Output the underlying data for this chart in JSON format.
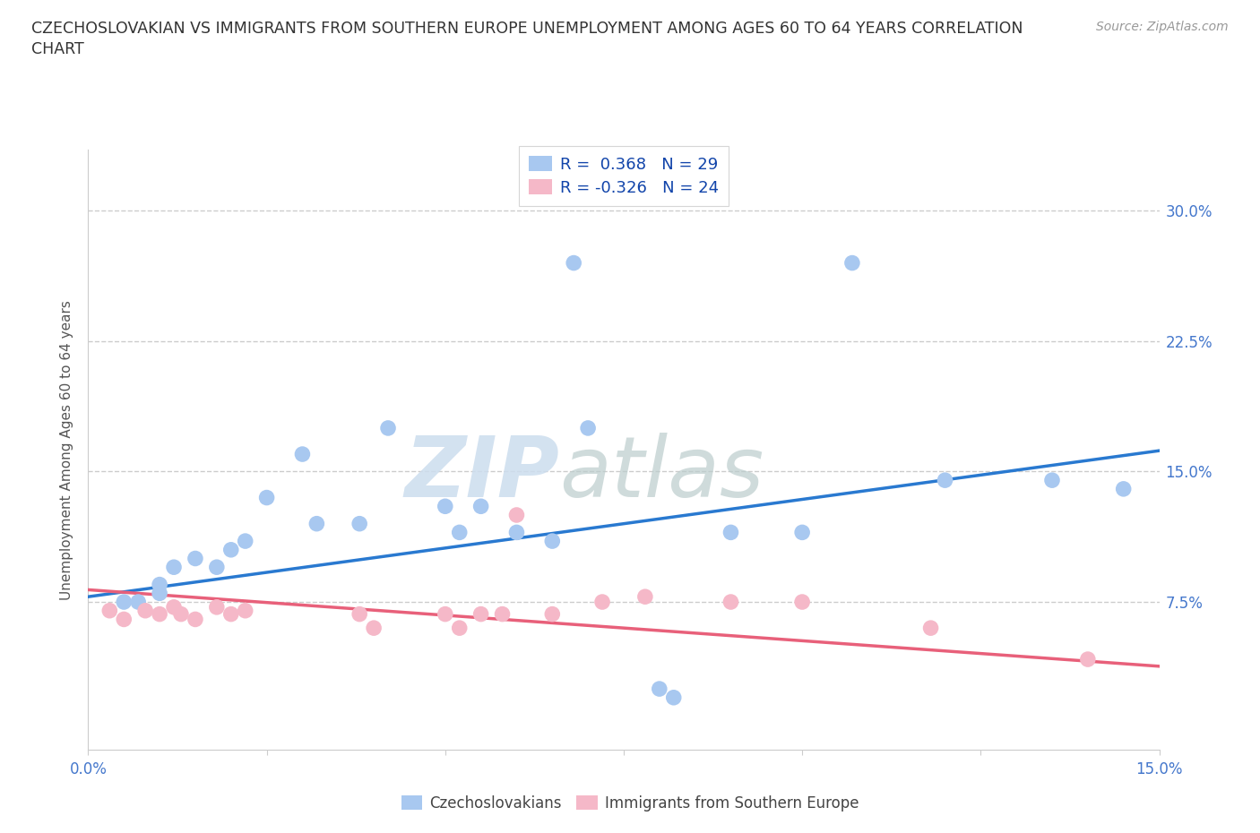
{
  "title_line1": "CZECHOSLOVAKIAN VS IMMIGRANTS FROM SOUTHERN EUROPE UNEMPLOYMENT AMONG AGES 60 TO 64 YEARS CORRELATION",
  "title_line2": "CHART",
  "source": "Source: ZipAtlas.com",
  "xlim": [
    0.0,
    0.15
  ],
  "ylim": [
    -0.01,
    0.335
  ],
  "blue_R": 0.368,
  "blue_N": 29,
  "pink_R": -0.326,
  "pink_N": 24,
  "blue_color": "#A8C8F0",
  "pink_color": "#F5B8C8",
  "blue_line_color": "#2979D0",
  "pink_line_color": "#E8607A",
  "blue_scatter": [
    [
      0.005,
      0.075
    ],
    [
      0.007,
      0.075
    ],
    [
      0.01,
      0.08
    ],
    [
      0.01,
      0.085
    ],
    [
      0.012,
      0.095
    ],
    [
      0.015,
      0.1
    ],
    [
      0.018,
      0.095
    ],
    [
      0.02,
      0.105
    ],
    [
      0.022,
      0.11
    ],
    [
      0.025,
      0.135
    ],
    [
      0.03,
      0.16
    ],
    [
      0.032,
      0.12
    ],
    [
      0.038,
      0.12
    ],
    [
      0.042,
      0.175
    ],
    [
      0.05,
      0.13
    ],
    [
      0.052,
      0.115
    ],
    [
      0.055,
      0.13
    ],
    [
      0.06,
      0.115
    ],
    [
      0.065,
      0.11
    ],
    [
      0.068,
      0.27
    ],
    [
      0.07,
      0.175
    ],
    [
      0.08,
      0.025
    ],
    [
      0.082,
      0.02
    ],
    [
      0.09,
      0.115
    ],
    [
      0.1,
      0.115
    ],
    [
      0.107,
      0.27
    ],
    [
      0.12,
      0.145
    ],
    [
      0.135,
      0.145
    ],
    [
      0.145,
      0.14
    ]
  ],
  "pink_scatter": [
    [
      0.003,
      0.07
    ],
    [
      0.005,
      0.065
    ],
    [
      0.008,
      0.07
    ],
    [
      0.01,
      0.068
    ],
    [
      0.012,
      0.072
    ],
    [
      0.013,
      0.068
    ],
    [
      0.015,
      0.065
    ],
    [
      0.018,
      0.072
    ],
    [
      0.02,
      0.068
    ],
    [
      0.022,
      0.07
    ],
    [
      0.038,
      0.068
    ],
    [
      0.04,
      0.06
    ],
    [
      0.05,
      0.068
    ],
    [
      0.052,
      0.06
    ],
    [
      0.055,
      0.068
    ],
    [
      0.058,
      0.068
    ],
    [
      0.06,
      0.125
    ],
    [
      0.065,
      0.068
    ],
    [
      0.072,
      0.075
    ],
    [
      0.078,
      0.078
    ],
    [
      0.09,
      0.075
    ],
    [
      0.1,
      0.075
    ],
    [
      0.118,
      0.06
    ],
    [
      0.14,
      0.042
    ]
  ],
  "gridline_color": "#CCCCCC",
  "gridline_style": "--",
  "ylabel": "Unemployment Among Ages 60 to 64 years",
  "tick_color": "#4477CC",
  "label_color": "#555555",
  "legend_label_color": "#1144AA",
  "watermark_zip_color": "#CCDDEE",
  "watermark_atlas_color": "#BBCCCC"
}
